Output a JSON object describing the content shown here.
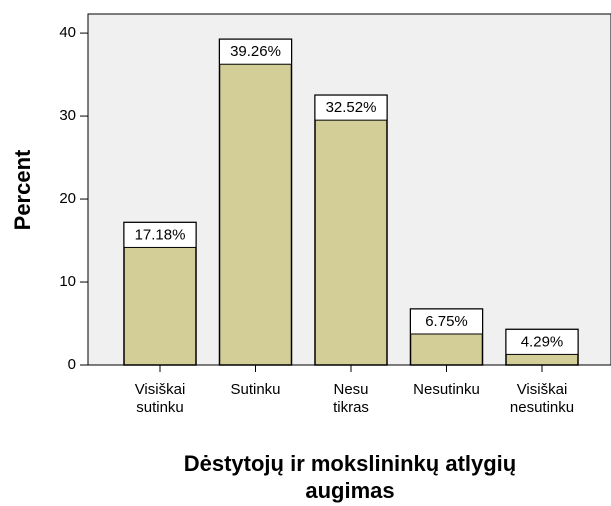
{
  "chart_data": {
    "type": "bar",
    "categories": [
      [
        "Visiškai",
        "sutinku"
      ],
      [
        "Sutinku"
      ],
      [
        "Nesu",
        "tikras"
      ],
      [
        "Nesutinku"
      ],
      [
        "Visiškai",
        "nesutinku"
      ]
    ],
    "values": [
      17.18,
      39.26,
      32.52,
      6.75,
      4.29
    ],
    "value_labels": [
      "17.18%",
      "39.26%",
      "32.52%",
      "6.75%",
      "4.29%"
    ],
    "color": "#d3ce97",
    "ylim": [
      0,
      42.3
    ],
    "yticks": [
      0,
      10,
      20,
      30,
      40
    ],
    "y_label": "Percent",
    "x_label": [
      "Dėstytojų ir mokslininkų atlygių",
      "augimas"
    ]
  }
}
